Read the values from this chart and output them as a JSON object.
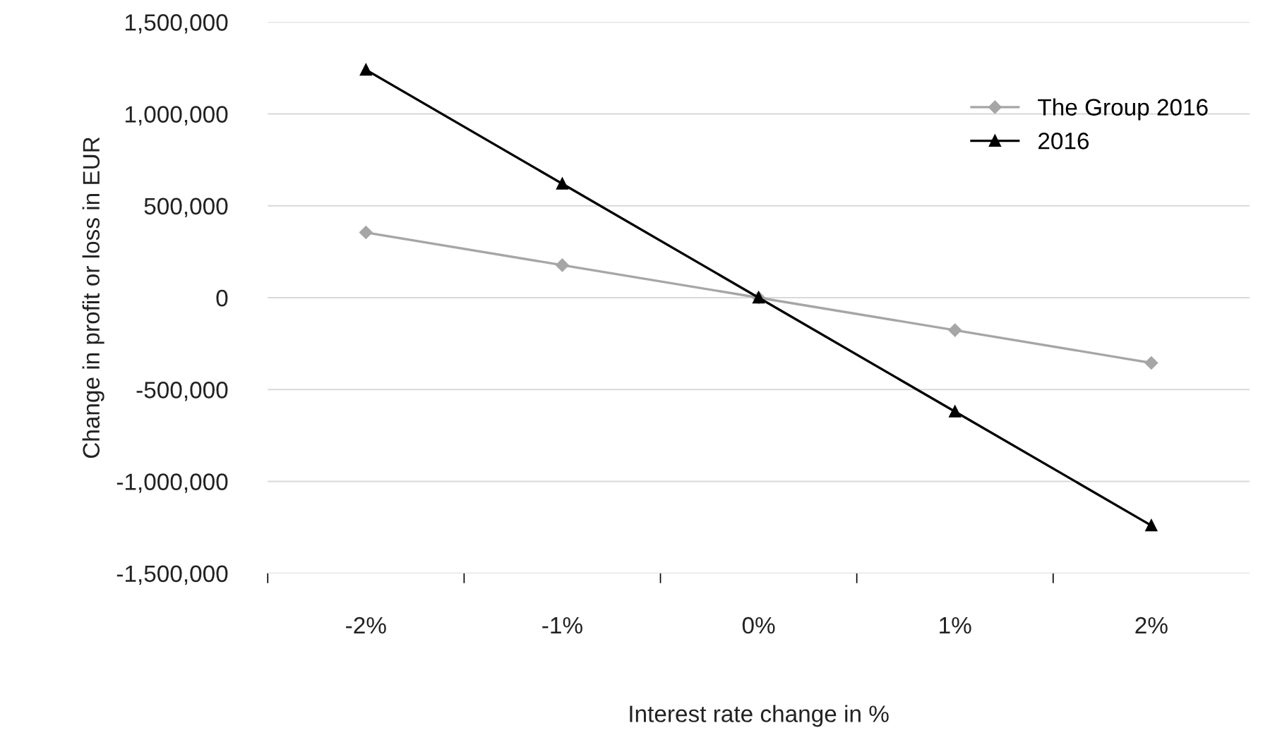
{
  "chart_data": {
    "type": "line",
    "xlabel": "Interest rate change in %",
    "ylabel": "Change in profit or loss in EUR",
    "categories": [
      "-2%",
      "-1%",
      "0%",
      "1%",
      "2%"
    ],
    "series": [
      {
        "name": "The Group 2016",
        "color": "#a6a6a6",
        "marker": "diamond",
        "values": [
          355000,
          177000,
          0,
          -177000,
          -355000
        ]
      },
      {
        "name": "2016",
        "color": "#000000",
        "marker": "triangle",
        "values": [
          1240000,
          620000,
          0,
          -620000,
          -1240000
        ]
      }
    ],
    "ylim": [
      -1500000,
      1500000
    ],
    "yticks": [
      {
        "value": -1500000,
        "label": "-1,500,000"
      },
      {
        "value": -1000000,
        "label": "-1,000,000"
      },
      {
        "value": -500000,
        "label": "-500,000"
      },
      0,
      {
        "value": 500000,
        "label": "500,000"
      },
      {
        "value": 1000000,
        "label": "1,000,000"
      },
      {
        "value": 1500000,
        "label": "1,500,000"
      }
    ],
    "grid": "y",
    "legend": "top right",
    "line_style": "solid"
  }
}
